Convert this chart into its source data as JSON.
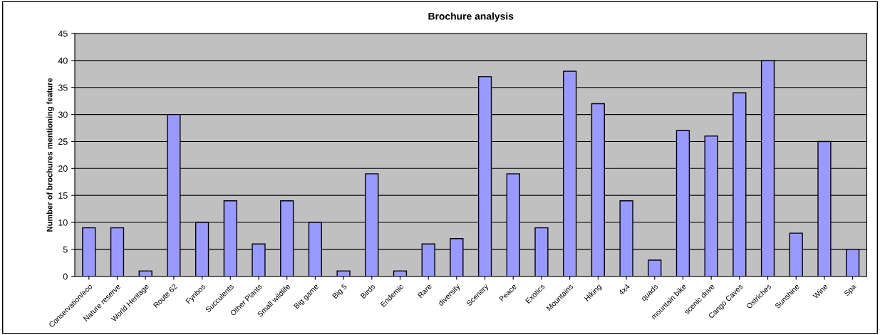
{
  "chart_data": {
    "type": "bar",
    "title": "Brochure analysis",
    "ylabel": "Number of brochures mentioning feature",
    "categories": [
      "Conservation/eco",
      "Nature reserve",
      "World Heritage",
      "Route 62",
      "Fynbos",
      "Succulents",
      "Other Plants",
      "Small wildlife",
      "Big game",
      "Big 5",
      "Birds",
      "Endemic",
      "Rare",
      "diversity",
      "Scenery",
      "Peace",
      "Exotics",
      "Mountains",
      "Hiking",
      "4x4",
      "quads",
      "mountain bike",
      "scenic drive",
      "Cango Caves",
      "Ostriches",
      "Sunshine",
      "Wine",
      "Spa"
    ],
    "values": [
      9,
      9,
      1,
      30,
      10,
      14,
      6,
      14,
      10,
      1,
      19,
      1,
      6,
      7,
      37,
      19,
      9,
      38,
      32,
      14,
      3,
      27,
      26,
      34,
      40,
      8,
      25,
      5
    ],
    "color": "#9999ff",
    "ylim": [
      0,
      45
    ],
    "yticks": [
      0,
      5,
      10,
      15,
      20,
      25,
      30,
      35,
      40,
      45
    ],
    "grid": "y",
    "legend": false
  }
}
